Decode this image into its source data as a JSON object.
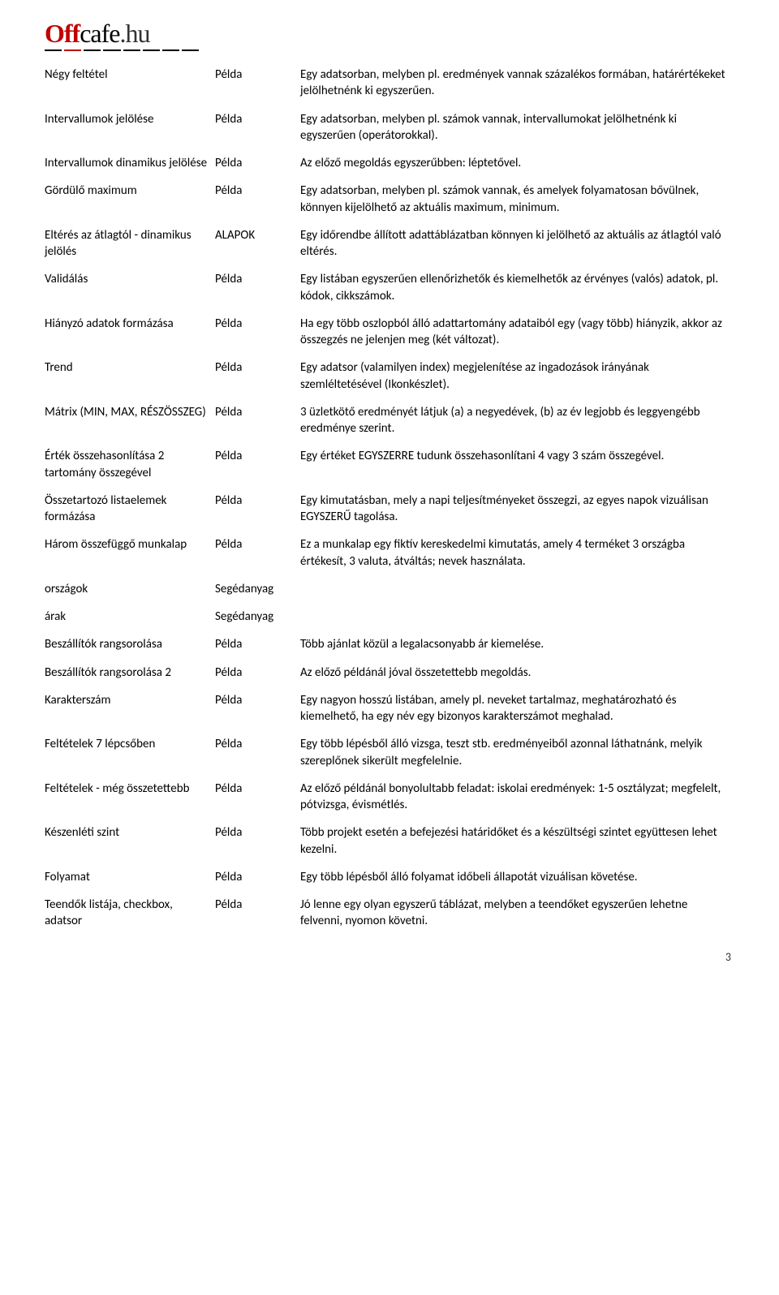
{
  "logo": {
    "off": "Off",
    "cafe": "cafe",
    "hu": ".hu"
  },
  "rows": [
    {
      "c1": "Négy feltétel",
      "c2": "Példa",
      "c3": "Egy adatsorban, melyben pl. eredmények vannak százalékos formában, határértékeket jelölhetnénk ki egyszerűen."
    },
    {
      "c1": "Intervallumok jelölése",
      "c2": "Példa",
      "c3": "Egy adatsorban, melyben pl. számok vannak, intervallumokat jelölhetnénk ki egyszerűen (operátorokkal)."
    },
    {
      "c1": "Intervallumok dinamikus jelölése",
      "c2": "Példa",
      "c3": "Az előző megoldás egyszerűbben: léptetővel."
    },
    {
      "c1": "Gördülő maximum",
      "c2": "Példa",
      "c3": "Egy adatsorban, melyben pl. számok vannak, és amelyek folyamatosan bővülnek, könnyen kijelölhető az aktuális maximum, minimum."
    },
    {
      "c1": "Eltérés az átlagtól - dinamikus jelölés",
      "c2": "ALAPOK",
      "c3": "Egy időrendbe állított adattáblázatban könnyen ki jelölhető az aktuális az átlagtól való eltérés."
    },
    {
      "c1": "Validálás",
      "c2": "Példa",
      "c3": "Egy listában egyszerűen ellenőrizhetők és kiemelhetők az érvényes (valós) adatok, pl. kódok, cikkszámok."
    },
    {
      "c1": "Hiányzó adatok formázása",
      "c2": "Példa",
      "c3": "Ha egy több oszlopból álló adattartomány adataiból egy (vagy több) hiányzik, akkor az összegzés ne jelenjen meg (két változat)."
    },
    {
      "c1": "Trend",
      "c2": "Példa",
      "c3": "Egy adatsor (valamilyen index) megjelenítése az ingadozások irányának szemléltetésével (Ikonkészlet)."
    },
    {
      "c1": "Mátrix (MIN, MAX, RÉSZÖSSZEG)",
      "c2": "Példa",
      "c3": "3 üzletkötő eredményét látjuk (a) a negyedévek, (b) az év legjobb és leggyengébb eredménye szerint."
    },
    {
      "c1": "Érték összehasonlítása 2 tartomány összegével",
      "c2": "Példa",
      "c3": "Egy értéket EGYSZERRE tudunk összehasonlítani 4 vagy 3 szám összegével."
    },
    {
      "c1": "Összetartozó listaelemek formázása",
      "c2": "Példa",
      "c3": "Egy kimutatásban, mely a napi teljesítményeket összegzi, az egyes napok vizuálisan EGYSZERŰ tagolása."
    },
    {
      "c1": "Három összefüggő munkalap",
      "c2": "Példa",
      "c3": "Ez a munkalap egy fiktív kereskedelmi kimutatás, amely 4 terméket 3 országba értékesít, 3 valuta, átváltás; nevek használata."
    },
    {
      "c1": "országok",
      "c2": "Segédanyag",
      "c3": ""
    },
    {
      "c1": "árak",
      "c2": "Segédanyag",
      "c3": ""
    },
    {
      "c1": "Beszállítók rangsorolása",
      "c2": "Példa",
      "c3": "Több ajánlat közül a legalacsonyabb ár kiemelése."
    },
    {
      "c1": "Beszállítók rangsorolása 2",
      "c2": "Példa",
      "c3": "Az előző példánál jóval összetettebb megoldás."
    },
    {
      "c1": "Karakterszám",
      "c2": "Példa",
      "c3": "Egy nagyon hosszú listában, amely pl. neveket tartalmaz, meghatározható és kiemelhető, ha egy név egy bizonyos karakterszámot meghalad."
    },
    {
      "c1": "Feltételek 7 lépcsőben",
      "c2": "Példa",
      "c3": "Egy több lépésből álló vizsga, teszt stb. eredményeiből azonnal láthatnánk, melyik szereplőnek sikerült megfelelnie."
    },
    {
      "c1": "Feltételek - még összetettebb",
      "c2": "Példa",
      "c3": "Az előző példánál bonyolultabb feladat: iskolai eredmények: 1-5 osztályzat; megfelelt, pótvizsga, évismétlés."
    },
    {
      "c1": "Készenléti szint",
      "c2": "Példa",
      "c3": "Több projekt esetén a befejezési határidőket és a készültségi szintet együttesen lehet kezelni."
    },
    {
      "c1": "Folyamat",
      "c2": "Példa",
      "c3": "Egy több lépésből álló folyamat időbeli állapotát vizuálisan követése."
    },
    {
      "c1": "Teendők listája, checkbox, adatsor",
      "c2": "Példa",
      "c3": "Jó lenne egy olyan egyszerű táblázat, melyben a teendőket egyszerűen lehetne felvenni, nyomon követni."
    }
  ],
  "page_number": "3"
}
